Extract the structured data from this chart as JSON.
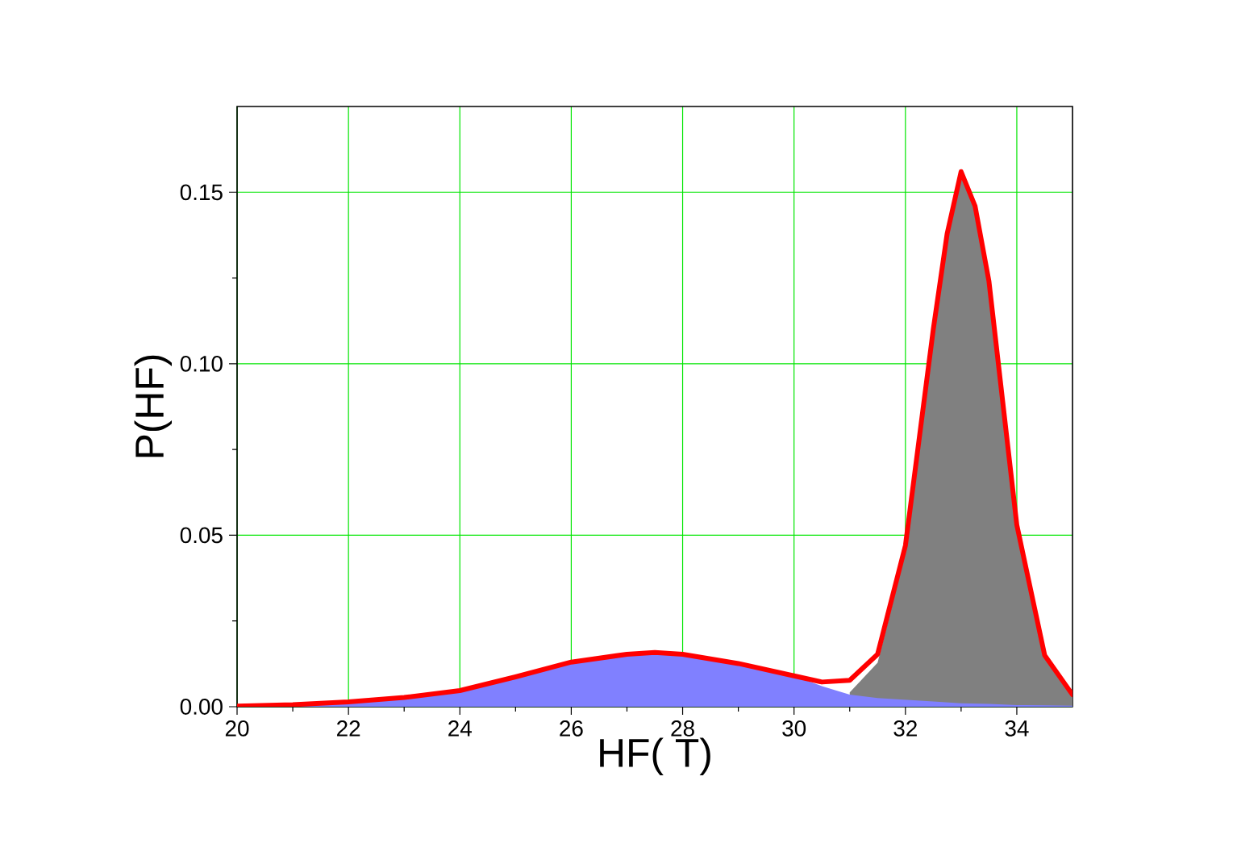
{
  "chart_data": {
    "type": "area",
    "xlabel": "HF( T)",
    "ylabel": "P(HF)",
    "xlim": [
      20,
      35
    ],
    "ylim": [
      0,
      0.175
    ],
    "xticks": [
      20,
      22,
      24,
      26,
      28,
      30,
      32,
      34
    ],
    "yticks": [
      {
        "value": 0,
        "label": "0.00"
      },
      {
        "value": 0.05,
        "label": "0.05"
      },
      {
        "value": 0.1,
        "label": "0.10"
      },
      {
        "value": 0.15,
        "label": "0.15"
      }
    ],
    "grid": true,
    "series": [
      {
        "color": "#808080",
        "x": [
          31,
          31.5,
          32,
          32.5,
          32.75,
          33,
          33.25,
          33.5,
          34,
          34.5,
          35
        ],
        "values": [
          0.0042,
          0.0128,
          0.045,
          0.1085,
          0.1368,
          0.155,
          0.1451,
          0.1232,
          0.0525,
          0.0146,
          0.0032
        ]
      },
      {
        "color": "#8080ff",
        "x": [
          20,
          21,
          22,
          23,
          24,
          25,
          26,
          27,
          27.5,
          28,
          29,
          30,
          30.5,
          31,
          31.5,
          32,
          32.5,
          33,
          33.5,
          34,
          34.5,
          35
        ],
        "values": [
          0.0002,
          0.0006,
          0.0014,
          0.0027,
          0.0047,
          0.0087,
          0.013,
          0.0153,
          0.0158,
          0.0153,
          0.0126,
          0.009,
          0.006,
          0.0035,
          0.0025,
          0.002,
          0.0015,
          0.001,
          0.0008,
          0.0005,
          0.0004,
          0.0003
        ]
      },
      {
        "type": "line",
        "color": "#ff0000",
        "x": [
          20,
          21,
          22,
          23,
          24,
          25,
          26,
          27,
          27.5,
          28,
          29,
          30,
          30.5,
          31,
          31.5,
          32,
          32.5,
          32.75,
          33,
          33.25,
          33.5,
          34,
          34.5,
          35
        ],
        "values": [
          0.0002,
          0.0006,
          0.0014,
          0.0027,
          0.0047,
          0.0087,
          0.013,
          0.0153,
          0.0158,
          0.0153,
          0.0126,
          0.009,
          0.0072,
          0.0077,
          0.0153,
          0.047,
          0.11,
          0.138,
          0.156,
          0.146,
          0.124,
          0.053,
          0.015,
          0.0035
        ]
      }
    ]
  }
}
